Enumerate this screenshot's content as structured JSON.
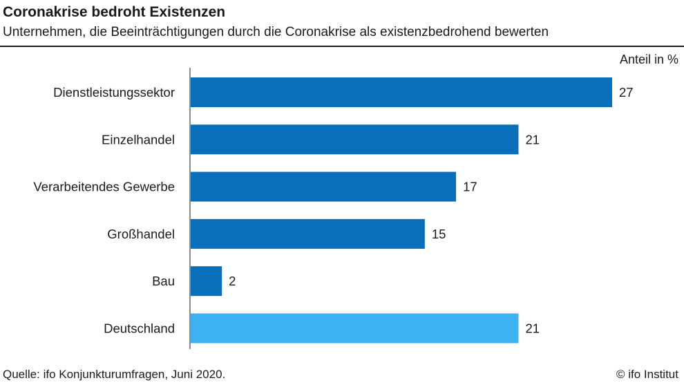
{
  "header": {
    "title": "Coronakrise bedroht Existenzen",
    "subtitle": "Unternehmen, die Beeinträchtigungen durch die Coronakrise als existenzbedrohend bewerten"
  },
  "footer": {
    "source": "Quelle: ifo Konjunkturumfragen, Juni 2020.",
    "copyright": "© ifo Institut"
  },
  "colors": {
    "bar_primary": "#0a6fba",
    "bar_highlight": "#3db1f2",
    "axis": "#666666"
  },
  "chart_data": {
    "type": "bar",
    "orientation": "horizontal",
    "unit_label": "Anteil in %",
    "categories": [
      "Dienstleistungssektor",
      "Einzelhandel",
      "Verarbeitendes Gewerbe",
      "Großhandel",
      "Bau",
      "Deutschland"
    ],
    "values": [
      27,
      21,
      17,
      15,
      2,
      21
    ],
    "highlight_category": "Deutschland",
    "xlim": [
      0,
      27
    ],
    "grid": false,
    "legend": "none"
  }
}
